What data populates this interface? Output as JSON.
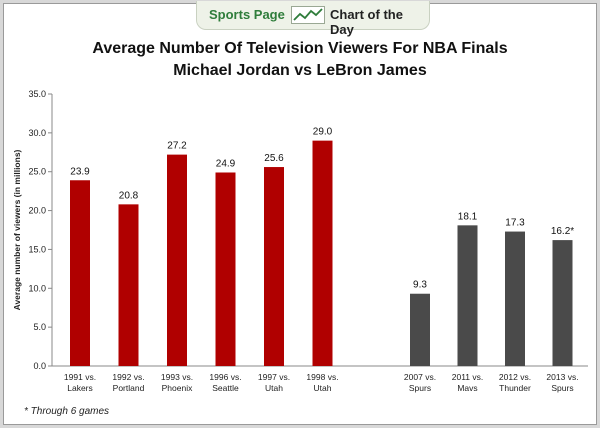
{
  "header": {
    "left_label": "Sports Page",
    "right_label": "Chart of the Day",
    "icon": "trend-line-icon",
    "accent_color": "#2f7d3b"
  },
  "chart_data": {
    "type": "bar",
    "title": "Average Number Of Television Viewers For NBA Finals",
    "subtitle": "Michael Jordan vs LeBron James",
    "ylabel": "Average number of viewers (in millions)",
    "xlabel": "",
    "ylim": [
      0,
      35
    ],
    "yticks": [
      "0.0",
      "5.0",
      "10.0",
      "15.0",
      "20.0",
      "25.0",
      "30.0",
      "35.0"
    ],
    "grid": false,
    "legend": "none",
    "groups": [
      {
        "color": "#b00000",
        "categories": [
          [
            "1991 vs.",
            "Lakers"
          ],
          [
            "1992 vs.",
            "Portland"
          ],
          [
            "1993 vs.",
            "Phoenix"
          ],
          [
            "1996 vs.",
            "Seattle"
          ],
          [
            "1997 vs.",
            "Utah"
          ],
          [
            "1998 vs.",
            "Utah"
          ]
        ],
        "values": [
          23.9,
          20.8,
          27.2,
          24.9,
          25.6,
          29.0
        ],
        "labels": [
          "23.9",
          "20.8",
          "27.2",
          "24.9",
          "25.6",
          "29.0"
        ]
      },
      {
        "color": "#4a4a4a",
        "categories": [
          [
            "2007 vs.",
            "Spurs"
          ],
          [
            "2011 vs.",
            "Mavs"
          ],
          [
            "2012 vs.",
            "Thunder"
          ],
          [
            "2013 vs.",
            "Spurs"
          ]
        ],
        "values": [
          9.3,
          18.1,
          17.3,
          16.2
        ],
        "labels": [
          "9.3",
          "18.1",
          "17.3",
          "16.2*"
        ]
      }
    ]
  },
  "footnote": "* Through 6 games"
}
